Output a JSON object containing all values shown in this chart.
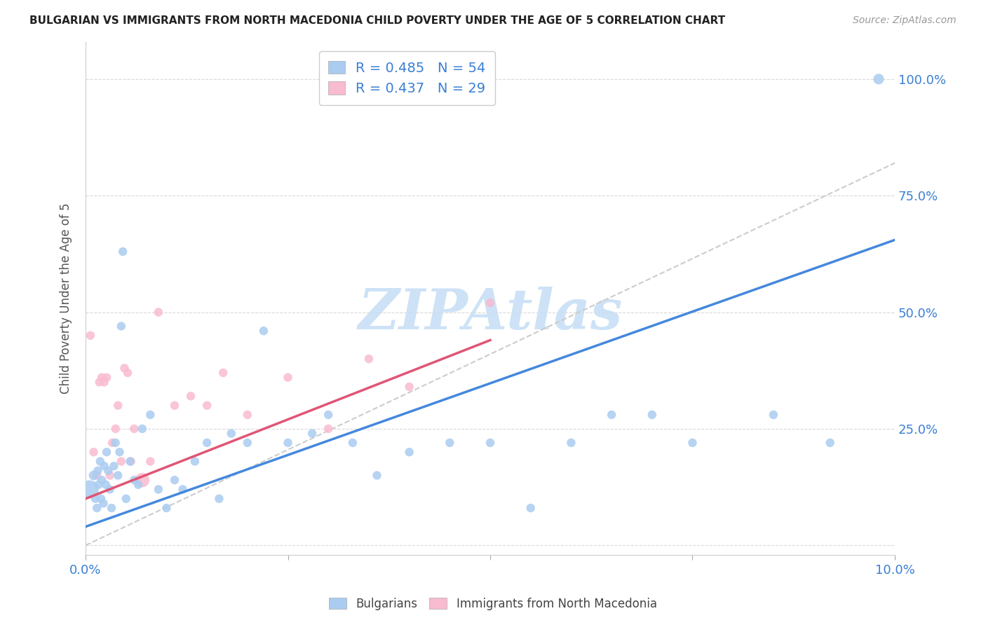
{
  "title": "BULGARIAN VS IMMIGRANTS FROM NORTH MACEDONIA CHILD POVERTY UNDER THE AGE OF 5 CORRELATION CHART",
  "source": "Source: ZipAtlas.com",
  "ylabel": "Child Poverty Under the Age of 5",
  "xlim": [
    0.0,
    10.0
  ],
  "ylim": [
    -0.02,
    1.08
  ],
  "blue_R": 0.485,
  "blue_N": 54,
  "pink_R": 0.437,
  "pink_N": 29,
  "blue_color": "#aaccf0",
  "blue_line_color": "#4488dd",
  "pink_color": "#f8bbd0",
  "pink_line_color": "#e05575",
  "gray_line_color": "#cccccc",
  "legend_label_blue": "Bulgarians",
  "legend_label_pink": "Immigrants from North Macedonia",
  "watermark": "ZIPAtlas",
  "watermark_color": "#c8dff5",
  "blue_line_start_x": 0.0,
  "blue_line_start_y": 0.04,
  "blue_line_end_x": 10.0,
  "blue_line_end_y": 0.655,
  "pink_line_start_x": 0.0,
  "pink_line_start_y": 0.1,
  "pink_line_end_x": 5.0,
  "pink_line_end_y": 0.44,
  "gray_line_start_x": 0.0,
  "gray_line_start_y": 0.0,
  "gray_line_end_x": 10.0,
  "gray_line_end_y": 0.82,
  "blue_x": [
    0.05,
    0.1,
    0.12,
    0.14,
    0.15,
    0.16,
    0.18,
    0.19,
    0.2,
    0.22,
    0.23,
    0.25,
    0.26,
    0.28,
    0.3,
    0.32,
    0.35,
    0.37,
    0.4,
    0.42,
    0.44,
    0.46,
    0.5,
    0.55,
    0.6,
    0.65,
    0.7,
    0.8,
    0.9,
    1.0,
    1.1,
    1.2,
    1.35,
    1.5,
    1.65,
    1.8,
    2.0,
    2.2,
    2.5,
    2.8,
    3.0,
    3.3,
    3.6,
    4.0,
    4.5,
    5.0,
    5.5,
    6.0,
    6.5,
    7.0,
    7.5,
    8.5,
    9.2,
    9.8
  ],
  "blue_y": [
    0.12,
    0.15,
    0.1,
    0.08,
    0.16,
    0.13,
    0.18,
    0.1,
    0.14,
    0.09,
    0.17,
    0.13,
    0.2,
    0.16,
    0.12,
    0.08,
    0.17,
    0.22,
    0.15,
    0.2,
    0.47,
    0.63,
    0.1,
    0.18,
    0.14,
    0.13,
    0.25,
    0.28,
    0.12,
    0.08,
    0.14,
    0.12,
    0.18,
    0.22,
    0.1,
    0.24,
    0.22,
    0.46,
    0.22,
    0.24,
    0.28,
    0.22,
    0.15,
    0.2,
    0.22,
    0.22,
    0.08,
    0.22,
    0.28,
    0.28,
    0.22,
    0.28,
    0.22,
    1.0
  ],
  "blue_sizes": [
    350,
    100,
    80,
    80,
    80,
    80,
    80,
    80,
    80,
    80,
    80,
    80,
    80,
    80,
    80,
    80,
    80,
    80,
    80,
    80,
    80,
    80,
    80,
    80,
    80,
    80,
    80,
    80,
    80,
    80,
    80,
    80,
    80,
    80,
    80,
    80,
    80,
    80,
    80,
    80,
    80,
    80,
    80,
    80,
    80,
    80,
    80,
    80,
    80,
    80,
    80,
    80,
    80,
    120
  ],
  "pink_x": [
    0.06,
    0.1,
    0.14,
    0.17,
    0.2,
    0.23,
    0.26,
    0.3,
    0.33,
    0.37,
    0.4,
    0.44,
    0.48,
    0.52,
    0.56,
    0.6,
    0.7,
    0.8,
    0.9,
    1.1,
    1.3,
    1.5,
    1.7,
    2.0,
    2.5,
    3.0,
    3.5,
    4.0,
    5.0
  ],
  "pink_y": [
    0.45,
    0.2,
    0.15,
    0.35,
    0.36,
    0.35,
    0.36,
    0.15,
    0.22,
    0.25,
    0.3,
    0.18,
    0.38,
    0.37,
    0.18,
    0.25,
    0.14,
    0.18,
    0.5,
    0.3,
    0.32,
    0.3,
    0.37,
    0.28,
    0.36,
    0.25,
    0.4,
    0.34,
    0.52
  ],
  "pink_sizes": [
    80,
    80,
    80,
    80,
    80,
    80,
    80,
    80,
    80,
    80,
    80,
    80,
    80,
    80,
    80,
    80,
    220,
    80,
    80,
    80,
    80,
    80,
    80,
    80,
    80,
    80,
    80,
    80,
    80
  ]
}
